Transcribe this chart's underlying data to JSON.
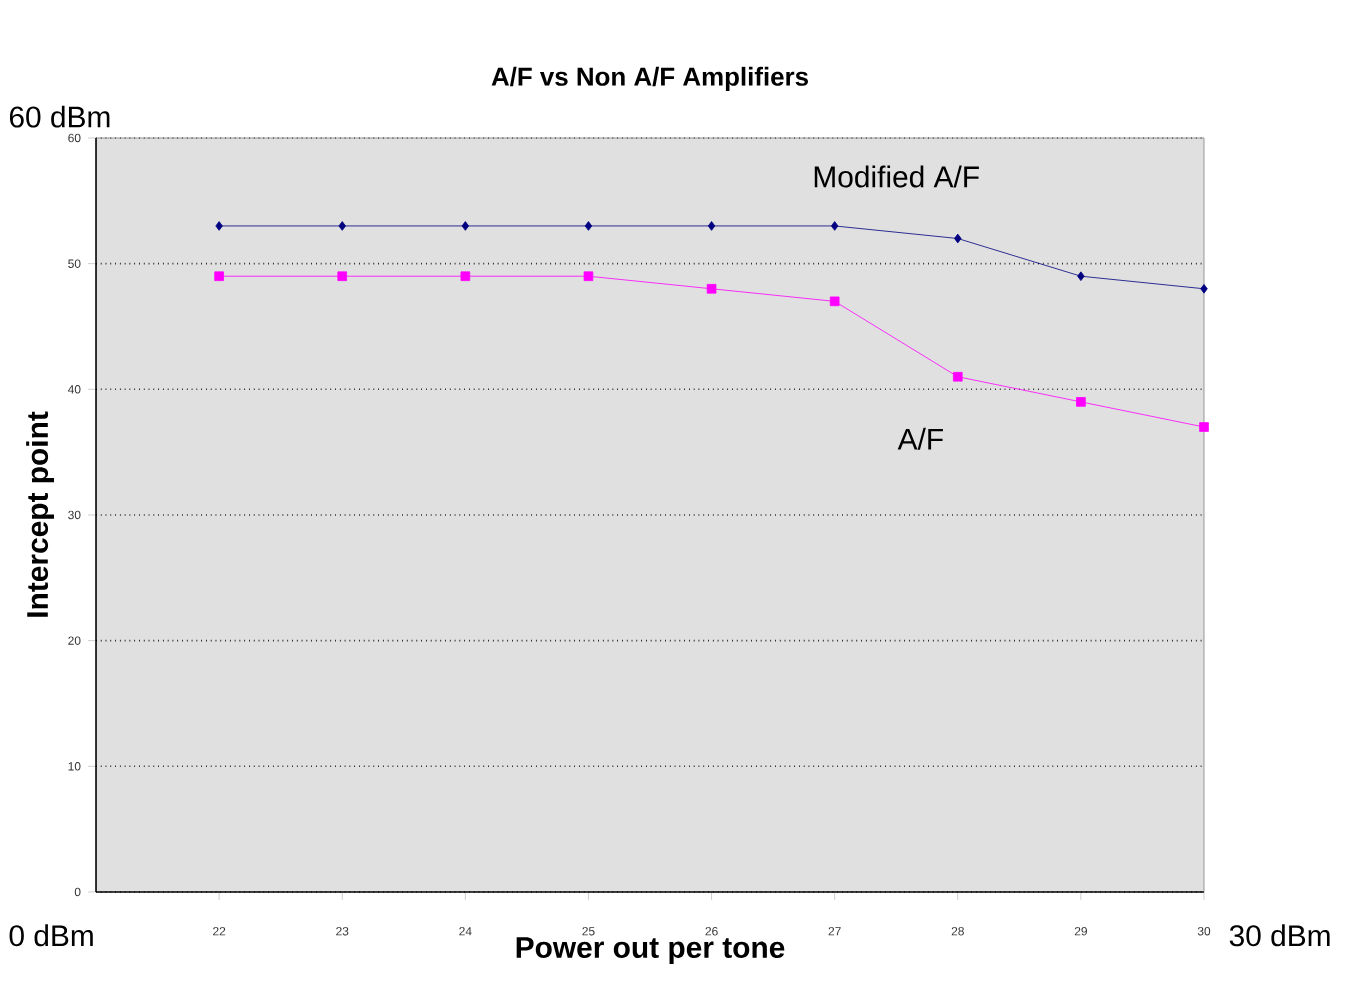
{
  "chart_data": {
    "type": "line",
    "title": "A/F vs Non A/F Amplifiers",
    "xlabel": "Power out per tone",
    "ylabel": "Intercept point",
    "annotations": [
      "60 dBm",
      "0 dBm",
      "30 dBm"
    ],
    "x": [
      22,
      23,
      24,
      25,
      26,
      27,
      28,
      29,
      30
    ],
    "series": [
      {
        "name": "Modified A/F",
        "color": "#000080",
        "marker": "diamond",
        "values": [
          53,
          53,
          53,
          53,
          53,
          53,
          52,
          49,
          48
        ]
      },
      {
        "name": "A/F",
        "color": "#ff00ff",
        "marker": "square",
        "values": [
          49,
          49,
          49,
          49,
          48,
          47,
          41,
          39,
          37
        ]
      }
    ],
    "xlim": [
      21,
      30
    ],
    "xticks": [
      22,
      23,
      24,
      25,
      26,
      27,
      28,
      29,
      30
    ],
    "ylim": [
      0,
      60
    ],
    "yticks": [
      0,
      10,
      20,
      30,
      40,
      50,
      60
    ],
    "grid": "y",
    "legend": false
  }
}
